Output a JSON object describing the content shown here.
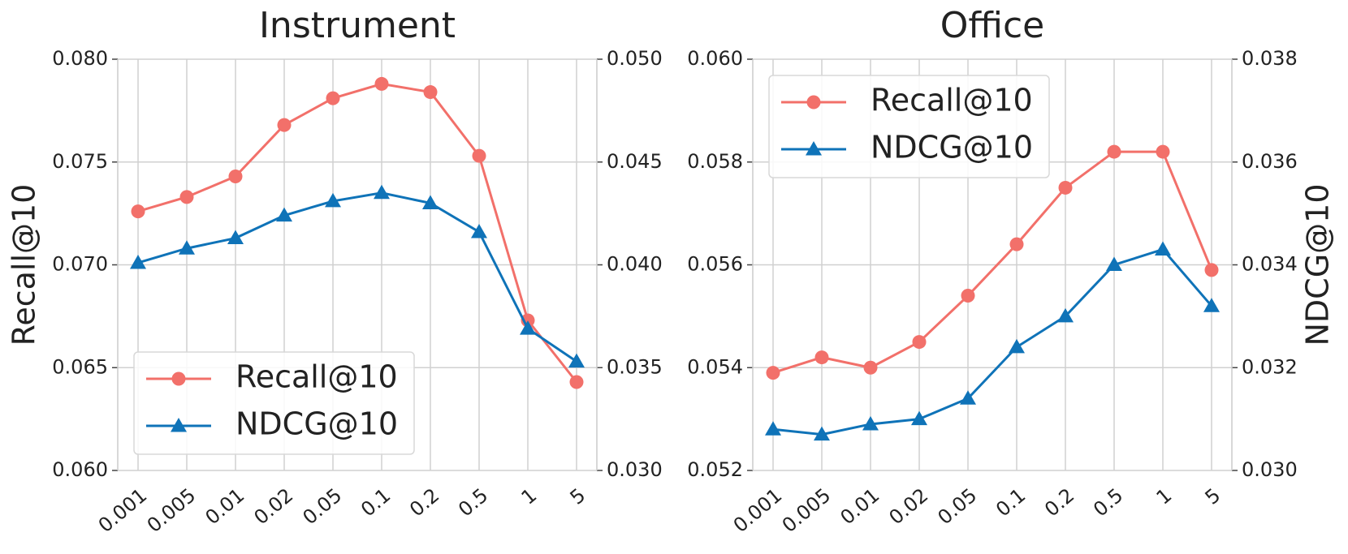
{
  "chart_data": [
    {
      "type": "line",
      "title": "Instrument",
      "ylabel": "Recall@10",
      "categories": [
        "0.001",
        "0.005",
        "0.01",
        "0.02",
        "0.05",
        "0.1",
        "0.2",
        "0.5",
        "1",
        "5"
      ],
      "series": [
        {
          "name": "Recall@10",
          "color": "#f2706a",
          "marker": "circle",
          "values": [
            0.0726,
            0.0733,
            0.0743,
            0.0768,
            0.0781,
            0.0788,
            0.0784,
            0.0753,
            0.0673,
            0.0643
          ]
        },
        {
          "name": "NDCG@10",
          "color": "#0f73b8",
          "marker": "triangle",
          "axis": "y2",
          "values": [
            0.0401,
            0.0408,
            0.0413,
            0.0424,
            0.0431,
            0.0435,
            0.043,
            0.0416,
            0.0369,
            0.0353
          ]
        }
      ],
      "ylim": [
        0.06,
        0.08
      ],
      "yticks": [
        {
          "value": 0.06,
          "label": "0.060"
        },
        0.065,
        {
          "value": 0.07,
          "label": "0.070"
        },
        0.075,
        {
          "value": 0.08,
          "label": "0.080"
        }
      ],
      "y2lim": [
        0.03,
        0.05
      ],
      "y2ticks": [
        {
          "value": 0.03,
          "label": "0.030"
        },
        0.035,
        {
          "value": 0.04,
          "label": "0.040"
        },
        0.045,
        {
          "value": 0.05,
          "label": "0.050"
        }
      ],
      "grid": true,
      "legend": "lower left"
    },
    {
      "type": "line",
      "title": "Office",
      "y2label": "NDCG@10",
      "categories": [
        "0.001",
        "0.005",
        "0.01",
        "0.02",
        "0.05",
        "0.1",
        "0.2",
        "0.5",
        "1",
        "5"
      ],
      "series": [
        {
          "name": "Recall@10",
          "color": "#f2706a",
          "marker": "circle",
          "values": [
            0.0539,
            0.0542,
            0.054,
            0.0545,
            0.0554,
            0.0564,
            0.0575,
            0.0582,
            0.0582,
            0.0559
          ]
        },
        {
          "name": "NDCG@10",
          "color": "#0f73b8",
          "marker": "triangle",
          "axis": "y2",
          "values": [
            0.0308,
            0.0307,
            0.0309,
            0.031,
            0.0314,
            0.0324,
            0.033,
            0.034,
            0.0343,
            0.0332
          ]
        }
      ],
      "ylim": [
        0.052,
        0.06
      ],
      "yticks": [
        0.052,
        0.054,
        0.056,
        0.058,
        {
          "value": 0.06,
          "label": "0.060"
        }
      ],
      "y2lim": [
        0.03,
        0.038
      ],
      "y2ticks": [
        {
          "value": 0.03,
          "label": "0.030"
        },
        0.032,
        0.034,
        0.036,
        0.038
      ],
      "grid": true,
      "legend": "upper left"
    }
  ]
}
